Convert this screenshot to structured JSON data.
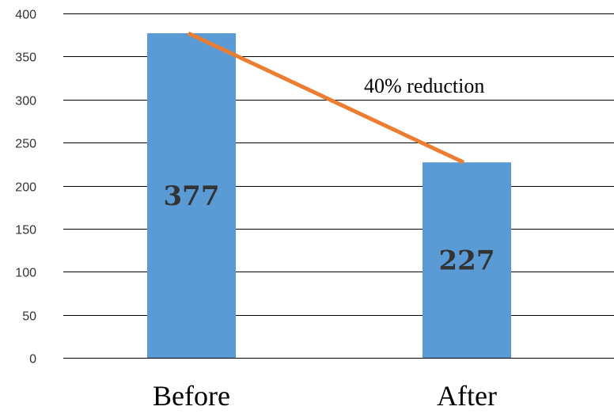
{
  "chart_data": {
    "type": "bar",
    "categories": [
      "Before",
      "After"
    ],
    "values": [
      377,
      227
    ],
    "data_labels": [
      "377",
      "227"
    ],
    "ylim": [
      0,
      400
    ],
    "yticks": [
      0,
      50,
      100,
      150,
      200,
      250,
      300,
      350,
      400
    ],
    "grid": true,
    "legend": "none",
    "annotation": {
      "text": "40% reduction",
      "line_from_category": "Before",
      "line_to_category": "After"
    },
    "colors": {
      "bar": "#5b9bd5",
      "trend_line": "#ed7d31",
      "grid": "#000000"
    }
  }
}
